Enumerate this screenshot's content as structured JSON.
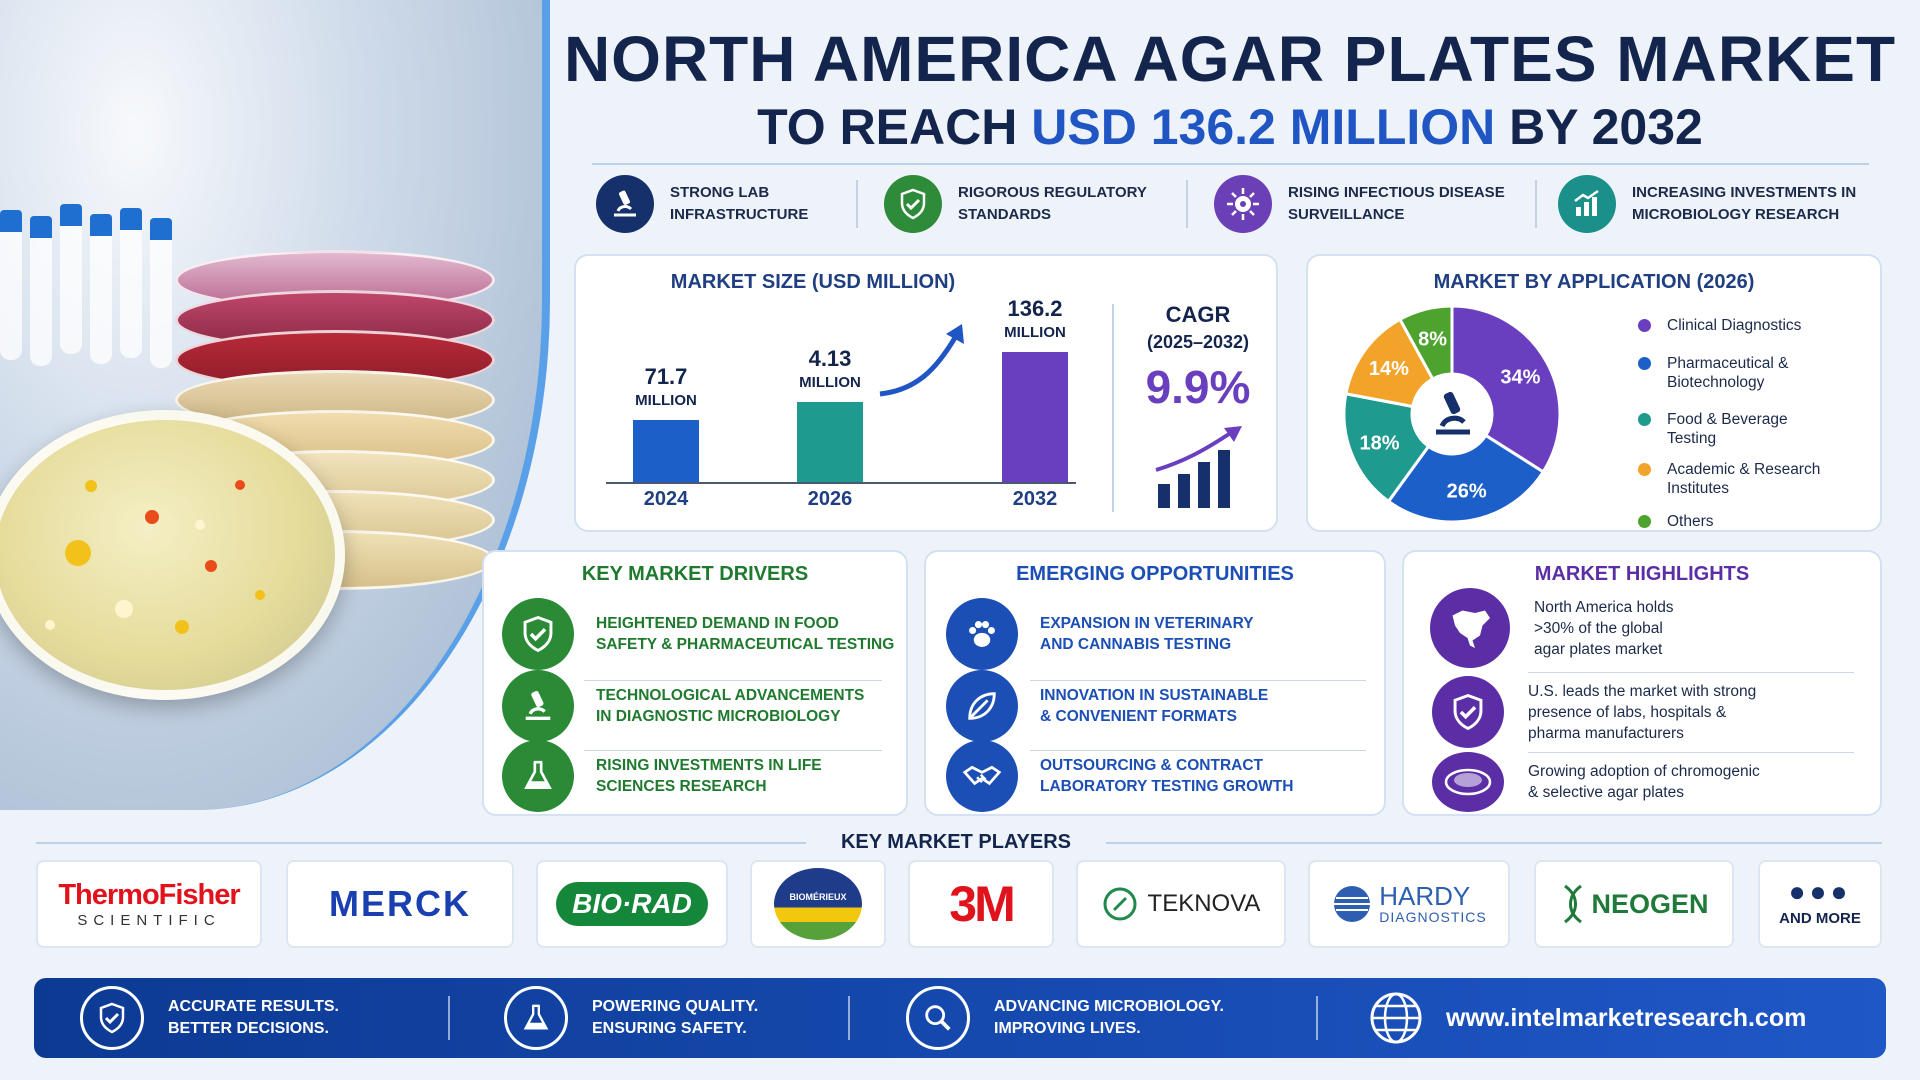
{
  "header": {
    "title_line1": "NORTH AMERICA AGAR PLATES MARKET",
    "title_line2_prefix": "TO REACH ",
    "title_line2_highlight": "USD 136.2 MILLION",
    "title_line2_suffix": " BY 2032"
  },
  "features": [
    {
      "icon": "microscope-icon",
      "label": "STRONG LAB\nINFRASTRUCTURE",
      "color": "#16306b"
    },
    {
      "icon": "shield-check-icon",
      "label": "RIGOROUS REGULATORY\nSTANDARDS",
      "color": "#2e8b3a"
    },
    {
      "icon": "virus-icon",
      "label": "RISING INFECTIOUS DISEASE\nSURVEILLANCE",
      "color": "#6b3fb5"
    },
    {
      "icon": "growth-chart-icon",
      "label": "INCREASING INVESTMENTS IN\nMICROBIOLOGY RESEARCH",
      "color": "#1b8f8a"
    }
  ],
  "market_size": {
    "title": "MARKET SIZE (USD MILLION)",
    "unit": "MILLION",
    "cagr_label": "CAGR",
    "cagr_period": "(2025–2032)",
    "cagr_value": "9.9%"
  },
  "chart_data": [
    {
      "type": "bar",
      "title": "MARKET SIZE (USD MILLION)",
      "categories": [
        "2024",
        "2026",
        "2032"
      ],
      "values": [
        71.7,
        4.13,
        136.2
      ],
      "value_labels": [
        "71.7",
        "4.13",
        "136.2"
      ],
      "colors": [
        "#1c5fc9",
        "#1e9a8e",
        "#6a3fbf"
      ]
    },
    {
      "type": "pie",
      "title": "MARKET BY APPLICATION (2026)",
      "labels": [
        "Clinical Diagnostics",
        "Pharmaceutical & Biotechnology",
        "Food & Beverage Testing",
        "Academic & Research Institutes",
        "Others"
      ],
      "legend_lines": [
        [
          "Clinical Diagnostics"
        ],
        [
          "Pharmaceutical &",
          "Biotechnology"
        ],
        [
          "Food & Beverage",
          "Testing"
        ],
        [
          "Academic & Research",
          "Institutes"
        ],
        [
          "Others"
        ]
      ],
      "values": [
        34,
        26,
        18,
        14,
        8
      ],
      "value_labels": [
        "34%",
        "26%",
        "18%",
        "14%",
        "8%"
      ],
      "colors": [
        "#6a3fbf",
        "#1c5fc9",
        "#1e9a8e",
        "#f2a32a",
        "#4ea32e"
      ],
      "legend": "right"
    }
  ],
  "drivers": {
    "title": "KEY MARKET DRIVERS",
    "color": "#1f7a2e",
    "items": [
      {
        "icon": "shield-check-icon",
        "label": "HEIGHTENED DEMAND IN FOOD\nSAFETY & PHARMACEUTICAL TESTING"
      },
      {
        "icon": "microscope-icon",
        "label": "TECHNOLOGICAL ADVANCEMENTS\nIN DIAGNOSTIC MICROBIOLOGY"
      },
      {
        "icon": "flask-icon",
        "label": "RISING INVESTMENTS IN LIFE\nSCIENCES RESEARCH"
      }
    ]
  },
  "opportunities": {
    "title": "EMERGING OPPORTUNITIES",
    "color": "#1c4fb5",
    "items": [
      {
        "icon": "paw-icon",
        "label": "EXPANSION IN VETERINARY\nAND CANNABIS TESTING"
      },
      {
        "icon": "leaf-icon",
        "label": "INNOVATION IN SUSTAINABLE\n& CONVENIENT FORMATS"
      },
      {
        "icon": "handshake-icon",
        "label": "OUTSOURCING & CONTRACT\nLABORATORY TESTING GROWTH"
      }
    ]
  },
  "highlights": {
    "title": "MARKET HIGHLIGHTS",
    "color": "#5b2ea6",
    "items": [
      {
        "icon": "north-america-map-icon",
        "label": "North America holds\n>30% of the global\nagar plates market"
      },
      {
        "icon": "shield-check-icon",
        "label": "U.S. leads the market with strong\npresence of labs, hospitals &\npharma manufacturers"
      },
      {
        "icon": "petri-dish-icon",
        "label": "Growing adoption of chromogenic\n& selective agar plates"
      }
    ]
  },
  "players": {
    "title": "KEY MARKET PLAYERS",
    "logos": [
      {
        "name": "thermo-fisher-logo",
        "line1": "ThermoFisher",
        "line2": "SCIENTIFIC"
      },
      {
        "name": "merck-logo",
        "line1": "MERCK"
      },
      {
        "name": "bio-rad-logo",
        "line1": "BIO·RAD"
      },
      {
        "name": "biomerieux-logo",
        "line1": "BIOMÉRIEUX"
      },
      {
        "name": "3m-logo",
        "line1": "3M"
      },
      {
        "name": "teknova-logo",
        "line1": "TEKNOVA"
      },
      {
        "name": "hardy-diagnostics-logo",
        "line1": "HARDY",
        "line2": "DIAGNOSTICS"
      },
      {
        "name": "neogen-logo",
        "line1": "NEOGEN"
      }
    ],
    "more_label": "AND MORE"
  },
  "footer": {
    "items": [
      {
        "icon": "shield-check-icon",
        "label": "ACCURATE RESULTS.\nBETTER DECISIONS."
      },
      {
        "icon": "flask-icon",
        "label": "POWERING QUALITY.\nENSURING SAFETY."
      },
      {
        "icon": "search-icon",
        "label": "ADVANCING MICROBIOLOGY.\nIMPROVING LIVES."
      }
    ],
    "globe_icon": "globe-icon",
    "website": "www.intelmarketresearch.com"
  }
}
